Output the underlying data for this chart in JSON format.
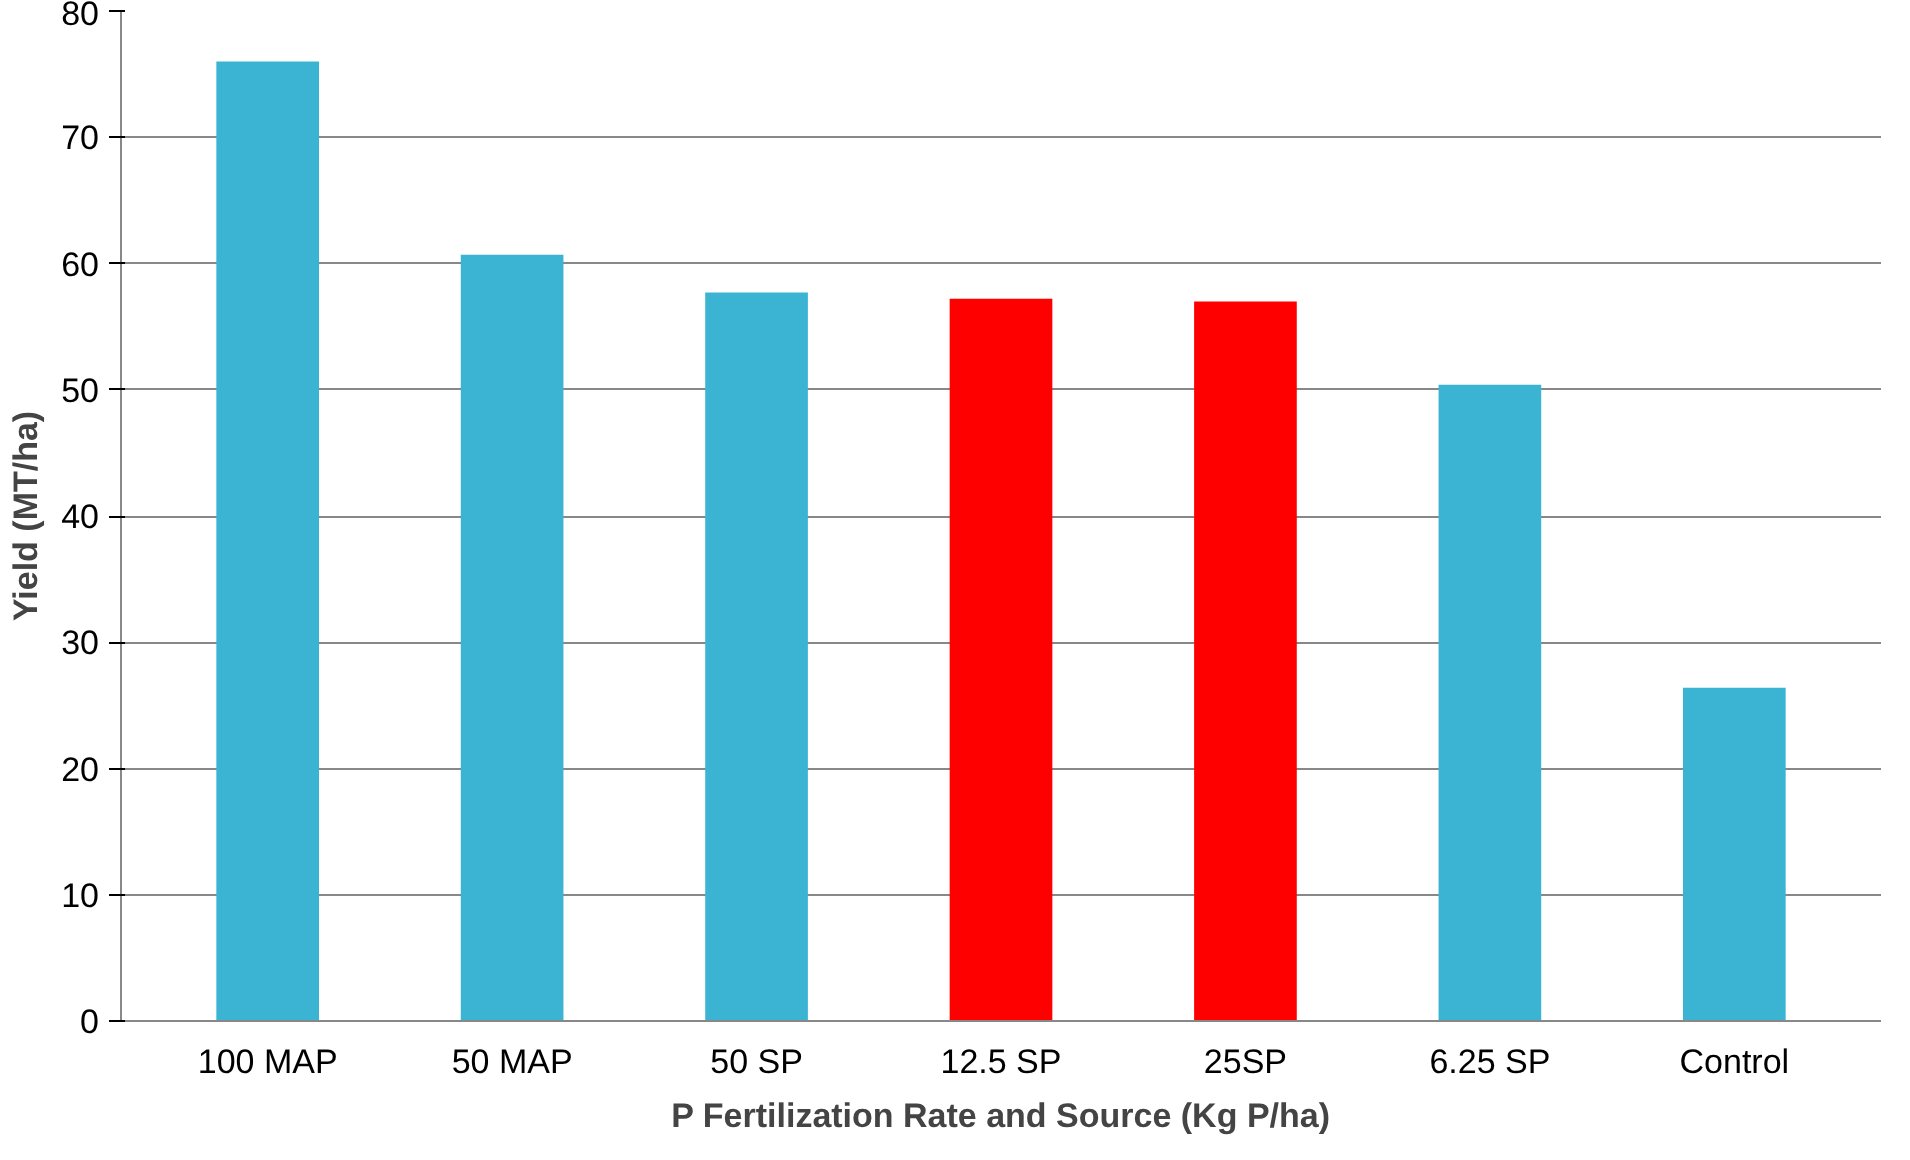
{
  "chart_data": {
    "type": "bar",
    "xlabel": "P Fertilization Rate and Source (Kg P/ha)",
    "ylabel": "Yield (MT/ha)",
    "categories": [
      "100 MAP",
      "50 MAP",
      "50 SP",
      "12.5 SP",
      "25SP",
      "6.25 SP",
      "Control"
    ],
    "values": [
      76,
      60.7,
      57.7,
      57.2,
      57,
      50.4,
      26.4
    ],
    "colors": [
      "#3bb4d4",
      "#3bb4d4",
      "#3bb4d4",
      "#ff0000",
      "#ff0000",
      "#3bb4d4",
      "#3bb4d4"
    ],
    "ylim": [
      0,
      80
    ],
    "yticks": [
      0,
      10,
      20,
      30,
      40,
      50,
      60,
      70,
      80
    ],
    "grid": "y"
  }
}
